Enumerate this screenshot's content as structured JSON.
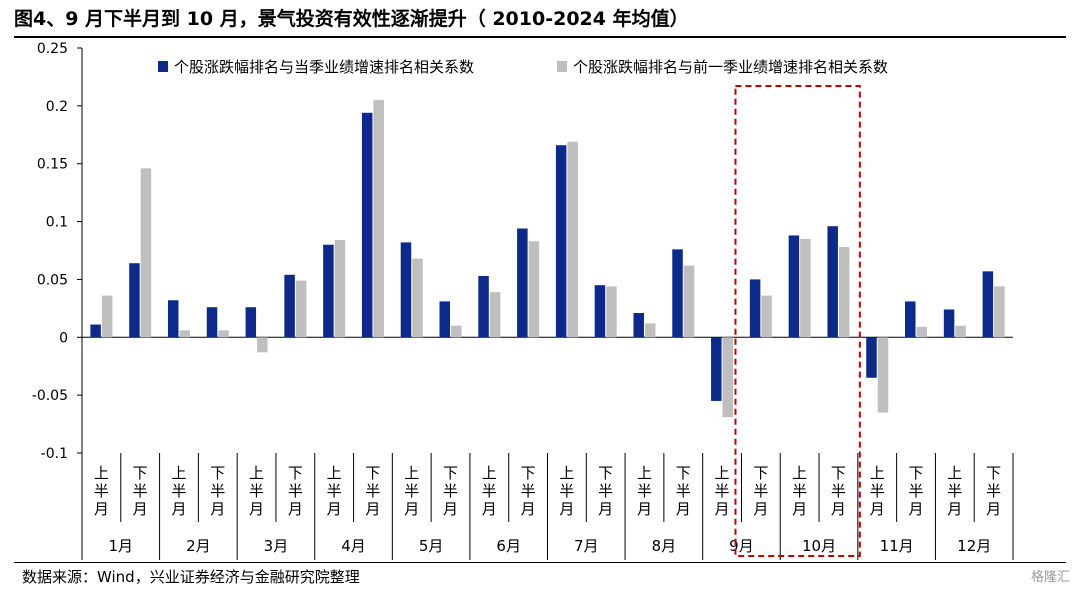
{
  "title": "图4、9 月下半月到 10 月，景气投资有效性逐渐提升（ 2010-2024 年均值）",
  "source": "数据来源：Wind，兴业证券经济与金融研究院整理",
  "watermark": "格隆汇",
  "chart_data": {
    "type": "bar",
    "title": "图4、9 月下半月到 10 月，景气投资有效性逐渐提升（ 2010-2024 年均值）",
    "ylim": [
      -0.1,
      0.25
    ],
    "yticks": [
      "0.25",
      "0.2",
      "0.15",
      "0.1",
      "0.05",
      "0",
      "-0.05",
      "-0.1"
    ],
    "ytick_values": [
      0.25,
      0.2,
      0.15,
      0.1,
      0.05,
      0,
      -0.05,
      -0.1
    ],
    "grid": false,
    "legend_position": "top",
    "half_labels": [
      "上半月",
      "下半月"
    ],
    "months": [
      "1月",
      "2月",
      "3月",
      "4月",
      "5月",
      "6月",
      "7月",
      "8月",
      "9月",
      "10月",
      "11月",
      "12月"
    ],
    "categories": [
      "1月上半月",
      "1月下半月",
      "2月上半月",
      "2月下半月",
      "3月上半月",
      "3月下半月",
      "4月上半月",
      "4月下半月",
      "5月上半月",
      "5月下半月",
      "6月上半月",
      "6月下半月",
      "7月上半月",
      "7月下半月",
      "8月上半月",
      "8月下半月",
      "9月上半月",
      "9月下半月",
      "10月上半月",
      "10月下半月",
      "11月上半月",
      "11月下半月",
      "12月上半月",
      "12月下半月"
    ],
    "series": [
      {
        "name": "个股涨跌幅排名与当季业绩增速排名相关系数",
        "color": "#0D2A8A",
        "values": [
          0.011,
          0.064,
          0.032,
          0.026,
          0.026,
          0.054,
          0.08,
          0.194,
          0.082,
          0.031,
          0.053,
          0.094,
          0.166,
          0.045,
          0.021,
          0.076,
          -0.055,
          0.05,
          0.088,
          0.096,
          -0.035,
          0.031,
          0.024,
          0.057
        ]
      },
      {
        "name": "个股涨跌幅排名与前一季业绩增速排名相关系数",
        "color": "#BFBFBF",
        "values": [
          0.036,
          0.146,
          0.006,
          0.006,
          -0.013,
          0.049,
          0.084,
          0.205,
          0.068,
          0.01,
          0.039,
          0.083,
          0.169,
          0.044,
          0.012,
          0.062,
          -0.069,
          0.036,
          0.085,
          0.078,
          -0.065,
          0.009,
          0.01,
          0.044
        ]
      }
    ],
    "highlight": {
      "from_category": 17,
      "to_category": 19,
      "color": "#C00000",
      "style": "dashed"
    }
  }
}
